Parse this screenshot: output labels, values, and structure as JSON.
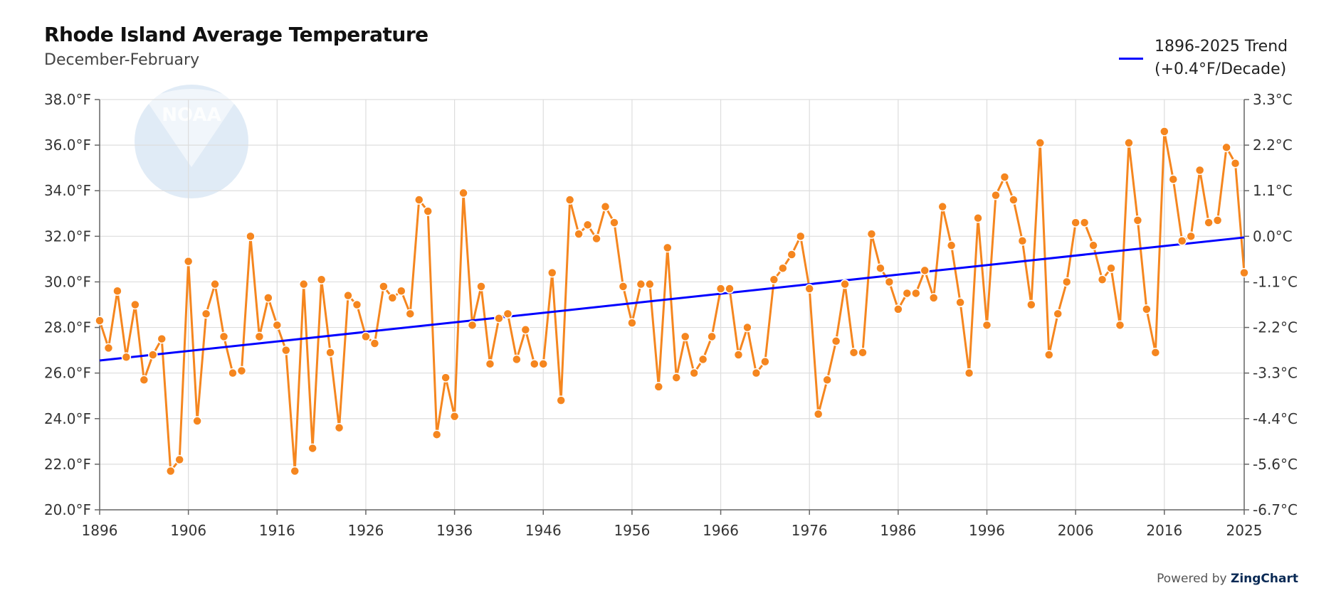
{
  "header": {
    "title": "Rhode Island Average Temperature",
    "subtitle": "December-February"
  },
  "legend": {
    "line1": "1896-2025 Trend",
    "line2": "(+0.4°F/Decade)"
  },
  "footer": {
    "powered_prefix": "Powered by",
    "powered_brand": "ZingChart"
  },
  "watermark": {
    "text": "NOAA"
  },
  "colors": {
    "series": "#f5861f",
    "trend": "#0000ff",
    "grid": "#dddddd",
    "watermark": "#dbe8f4"
  },
  "chart_data": {
    "type": "line",
    "title": "Rhode Island Average Temperature",
    "subtitle": "December-February",
    "xlabel": "",
    "ylabel": "",
    "xlim": [
      1896,
      2025
    ],
    "ylim": [
      20,
      38
    ],
    "grid": true,
    "legend_position": "top-right",
    "x_ticks": [
      "1896",
      "1906",
      "1916",
      "1926",
      "1936",
      "1946",
      "1956",
      "1966",
      "1976",
      "1986",
      "1996",
      "2006",
      "2016",
      "2025"
    ],
    "x_tick_values": [
      1896,
      1906,
      1916,
      1926,
      1936,
      1946,
      1956,
      1966,
      1976,
      1986,
      1996,
      2006,
      2016,
      2025
    ],
    "y_ticks_left": [
      "20.0°F",
      "22.0°F",
      "24.0°F",
      "26.0°F",
      "28.0°F",
      "30.0°F",
      "32.0°F",
      "34.0°F",
      "36.0°F",
      "38.0°F"
    ],
    "y_tick_values": [
      20,
      22,
      24,
      26,
      28,
      30,
      32,
      34,
      36,
      38
    ],
    "y_ticks_right": [
      "-6.7°C",
      "-5.6°C",
      "-4.4°C",
      "-3.3°C",
      "-2.2°C",
      "-1.1°C",
      "0.0°C",
      "1.1°C",
      "2.2°C",
      "3.3°C"
    ],
    "series": [
      {
        "name": "",
        "x_start": 1896,
        "values": [
          28.3,
          27.1,
          29.6,
          26.7,
          29.0,
          25.7,
          26.8,
          27.5,
          21.7,
          22.2,
          30.9,
          23.9,
          28.6,
          29.9,
          27.6,
          26.0,
          26.1,
          32.0,
          27.6,
          29.3,
          28.1,
          27.0,
          21.7,
          29.9,
          22.7,
          30.1,
          26.9,
          23.6,
          29.4,
          29.0,
          27.6,
          27.3,
          29.8,
          29.3,
          29.6,
          28.6,
          33.6,
          33.1,
          23.3,
          25.8,
          24.1,
          33.9,
          28.1,
          29.8,
          26.4,
          28.4,
          28.6,
          26.6,
          27.9,
          26.4,
          26.4,
          30.4,
          24.8,
          33.6,
          32.1,
          32.5,
          31.9,
          33.3,
          32.6,
          29.8,
          28.2,
          29.9,
          29.9,
          25.4,
          31.5,
          25.8,
          27.6,
          26.0,
          26.6,
          27.6,
          29.7,
          29.7,
          26.8,
          28.0,
          26.0,
          26.5,
          30.1,
          30.6,
          31.2,
          32.0,
          29.7,
          24.2,
          25.7,
          27.4,
          29.9,
          26.9,
          26.9,
          32.1,
          30.6,
          30.0,
          28.8,
          29.5,
          29.5,
          30.5,
          29.3,
          33.3,
          31.6,
          29.1,
          26.0,
          32.8,
          28.1,
          33.8,
          34.6,
          33.6,
          31.8,
          29.0,
          36.1,
          26.8,
          28.6,
          30.0,
          32.6,
          32.6,
          31.6,
          30.1,
          30.6,
          28.1,
          36.1,
          32.7,
          28.8,
          26.9,
          36.6,
          34.5,
          31.8,
          32.0,
          34.9,
          32.6,
          32.7,
          35.9,
          35.2,
          30.4
        ]
      },
      {
        "name": "1896-2025 Trend",
        "type": "trend",
        "x": [
          1896,
          2025
        ],
        "values": [
          26.55,
          31.95
        ]
      }
    ]
  }
}
